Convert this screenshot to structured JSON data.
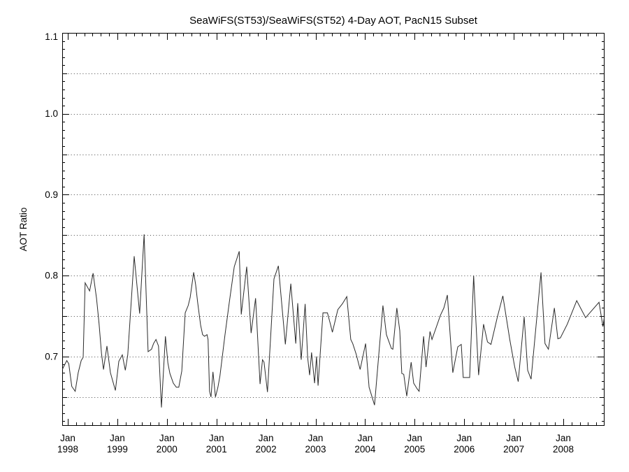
{
  "page": {
    "background": "#ffffff"
  },
  "chart_data": {
    "type": "line",
    "title": "SeaWiFS(ST53)/SeaWiFS(ST52) 4-Day AOT, PacN15 Subset",
    "xlabel": "",
    "ylabel": "AOT Ratio",
    "xlim": [
      1997.887,
      2008.832
    ],
    "ylim": [
      0.6143,
      1.1
    ],
    "legend": "none",
    "grid": "horizontal dotted lines every 0.05",
    "gridline_values": [
      0.65,
      0.7,
      0.75,
      0.8,
      0.85,
      0.9,
      0.95,
      1.0,
      1.05
    ],
    "y_ticks": [
      {
        "v": 0.7,
        "label": "0.7"
      },
      {
        "v": 0.8,
        "label": "0.8"
      },
      {
        "v": 0.9,
        "label": "0.9"
      },
      {
        "v": 1.0,
        "label": "1.0"
      },
      {
        "v": 1.1,
        "label": "1.1"
      }
    ],
    "y_minor_step": 0.01,
    "y_half_step": 0.05,
    "x_ticks": [
      {
        "t": 1998,
        "month": "Jan",
        "year": "1998"
      },
      {
        "t": 1999,
        "month": "Jan",
        "year": "1999"
      },
      {
        "t": 2000,
        "month": "Jan",
        "year": "2000"
      },
      {
        "t": 2001,
        "month": "Jan",
        "year": "2001"
      },
      {
        "t": 2002,
        "month": "Jan",
        "year": "2002"
      },
      {
        "t": 2003,
        "month": "Jan",
        "year": "2003"
      },
      {
        "t": 2004,
        "month": "Jan",
        "year": "2004"
      },
      {
        "t": 2005,
        "month": "Jan",
        "year": "2005"
      },
      {
        "t": 2006,
        "month": "Jan",
        "year": "2006"
      },
      {
        "t": 2007,
        "month": "Jan",
        "year": "2007"
      },
      {
        "t": 2008,
        "month": "Jan",
        "year": "2008"
      }
    ],
    "x_minor_divisions_per_year": 6,
    "line_color": "#2b2b2b",
    "axis_color": "#000000",
    "grid_color": "#4a4a4a",
    "series": [
      {
        "name": "AOT Ratio",
        "points": [
          [
            1997.89,
            0.684
          ],
          [
            1997.93,
            0.689
          ],
          [
            1997.98,
            0.695
          ],
          [
            1998.02,
            0.691
          ],
          [
            1998.08,
            0.663
          ],
          [
            1998.15,
            0.657
          ],
          [
            1998.21,
            0.68
          ],
          [
            1998.27,
            0.695
          ],
          [
            1998.31,
            0.699
          ],
          [
            1998.35,
            0.791
          ],
          [
            1998.44,
            0.781
          ],
          [
            1998.51,
            0.803
          ],
          [
            1998.58,
            0.772
          ],
          [
            1998.63,
            0.741
          ],
          [
            1998.68,
            0.704
          ],
          [
            1998.72,
            0.684
          ],
          [
            1998.79,
            0.713
          ],
          [
            1998.86,
            0.68
          ],
          [
            1998.96,
            0.658
          ],
          [
            1999.03,
            0.694
          ],
          [
            1999.1,
            0.702
          ],
          [
            1999.16,
            0.683
          ],
          [
            1999.21,
            0.702
          ],
          [
            1999.34,
            0.824
          ],
          [
            1999.45,
            0.753
          ],
          [
            1999.54,
            0.851
          ],
          [
            1999.62,
            0.706
          ],
          [
            1999.69,
            0.709
          ],
          [
            1999.73,
            0.716
          ],
          [
            1999.78,
            0.721
          ],
          [
            1999.83,
            0.713
          ],
          [
            1999.89,
            0.637
          ],
          [
            1999.97,
            0.725
          ],
          [
            2000.02,
            0.692
          ],
          [
            2000.06,
            0.679
          ],
          [
            2000.13,
            0.667
          ],
          [
            2000.19,
            0.662
          ],
          [
            2000.24,
            0.662
          ],
          [
            2000.3,
            0.682
          ],
          [
            2000.37,
            0.754
          ],
          [
            2000.43,
            0.763
          ],
          [
            2000.47,
            0.773
          ],
          [
            2000.54,
            0.804
          ],
          [
            2000.58,
            0.789
          ],
          [
            2000.62,
            0.767
          ],
          [
            2000.68,
            0.739
          ],
          [
            2000.72,
            0.727
          ],
          [
            2000.76,
            0.725
          ],
          [
            2000.81,
            0.727
          ],
          [
            2000.83,
            0.721
          ],
          [
            2000.86,
            0.657
          ],
          [
            2000.89,
            0.65
          ],
          [
            2000.93,
            0.681
          ],
          [
            2000.98,
            0.65
          ],
          [
            2001.03,
            0.662
          ],
          [
            2001.07,
            0.676
          ],
          [
            2001.17,
            0.726
          ],
          [
            2001.26,
            0.767
          ],
          [
            2001.36,
            0.811
          ],
          [
            2001.46,
            0.83
          ],
          [
            2001.5,
            0.752
          ],
          [
            2001.61,
            0.811
          ],
          [
            2001.7,
            0.729
          ],
          [
            2001.79,
            0.772
          ],
          [
            2001.88,
            0.666
          ],
          [
            2001.93,
            0.696
          ],
          [
            2001.96,
            0.693
          ],
          [
            2002.03,
            0.656
          ],
          [
            2002.16,
            0.796
          ],
          [
            2002.25,
            0.812
          ],
          [
            2002.39,
            0.715
          ],
          [
            2002.5,
            0.79
          ],
          [
            2002.6,
            0.716
          ],
          [
            2002.64,
            0.766
          ],
          [
            2002.71,
            0.696
          ],
          [
            2002.79,
            0.765
          ],
          [
            2002.84,
            0.699
          ],
          [
            2002.88,
            0.677
          ],
          [
            2002.92,
            0.705
          ],
          [
            2002.98,
            0.667
          ],
          [
            2003.02,
            0.7
          ],
          [
            2003.05,
            0.664
          ],
          [
            2003.15,
            0.754
          ],
          [
            2003.24,
            0.754
          ],
          [
            2003.3,
            0.74
          ],
          [
            2003.34,
            0.73
          ],
          [
            2003.45,
            0.758
          ],
          [
            2003.54,
            0.765
          ],
          [
            2003.63,
            0.774
          ],
          [
            2003.71,
            0.721
          ],
          [
            2003.75,
            0.716
          ],
          [
            2003.82,
            0.703
          ],
          [
            2003.9,
            0.684
          ],
          [
            2004.01,
            0.716
          ],
          [
            2004.08,
            0.662
          ],
          [
            2004.19,
            0.64
          ],
          [
            2004.36,
            0.763
          ],
          [
            2004.43,
            0.727
          ],
          [
            2004.53,
            0.71
          ],
          [
            2004.56,
            0.709
          ],
          [
            2004.64,
            0.76
          ],
          [
            2004.7,
            0.732
          ],
          [
            2004.74,
            0.679
          ],
          [
            2004.78,
            0.678
          ],
          [
            2004.84,
            0.651
          ],
          [
            2004.93,
            0.693
          ],
          [
            2004.98,
            0.667
          ],
          [
            2005.05,
            0.66
          ],
          [
            2005.09,
            0.657
          ],
          [
            2005.18,
            0.725
          ],
          [
            2005.23,
            0.687
          ],
          [
            2005.31,
            0.731
          ],
          [
            2005.35,
            0.721
          ],
          [
            2005.52,
            0.751
          ],
          [
            2005.59,
            0.76
          ],
          [
            2005.66,
            0.776
          ],
          [
            2005.77,
            0.68
          ],
          [
            2005.87,
            0.712
          ],
          [
            2005.94,
            0.715
          ],
          [
            2005.98,
            0.674
          ],
          [
            2006.11,
            0.674
          ],
          [
            2006.19,
            0.8
          ],
          [
            2006.29,
            0.677
          ],
          [
            2006.39,
            0.74
          ],
          [
            2006.47,
            0.718
          ],
          [
            2006.54,
            0.715
          ],
          [
            2006.67,
            0.749
          ],
          [
            2006.78,
            0.775
          ],
          [
            2006.92,
            0.721
          ],
          [
            2007.02,
            0.687
          ],
          [
            2007.09,
            0.669
          ],
          [
            2007.21,
            0.749
          ],
          [
            2007.28,
            0.683
          ],
          [
            2007.35,
            0.672
          ],
          [
            2007.55,
            0.804
          ],
          [
            2007.63,
            0.716
          ],
          [
            2007.7,
            0.709
          ],
          [
            2007.82,
            0.76
          ],
          [
            2007.89,
            0.722
          ],
          [
            2007.94,
            0.723
          ],
          [
            2008.08,
            0.74
          ],
          [
            2008.27,
            0.769
          ],
          [
            2008.45,
            0.748
          ],
          [
            2008.72,
            0.767
          ],
          [
            2008.8,
            0.737
          ],
          [
            2008.83,
            0.75
          ]
        ]
      }
    ]
  }
}
